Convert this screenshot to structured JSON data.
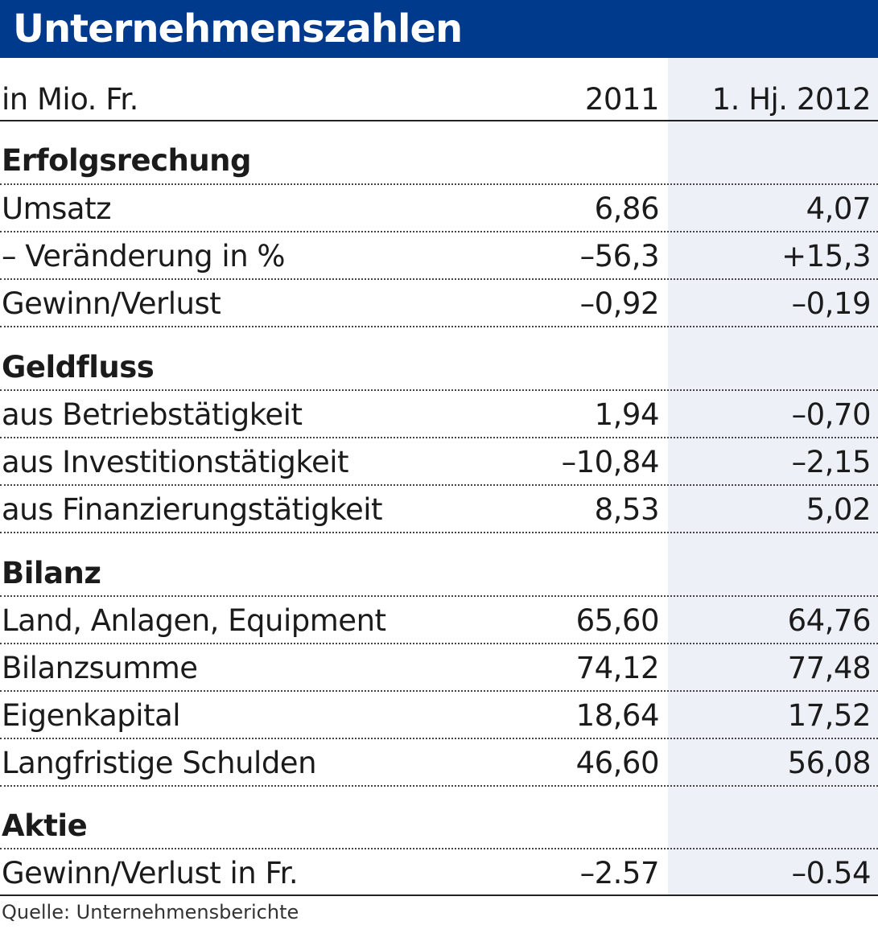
{
  "title": "Unternehmenszahlen",
  "colors": {
    "banner": "#003a8c",
    "column_shade": "#edf1f7",
    "text": "#1b1b1b"
  },
  "header": {
    "unit": "in Mio. Fr.",
    "col1": "2011",
    "col2": "1. Hj. 2012"
  },
  "sections": [
    {
      "name": "Erfolgsrechung",
      "rows": [
        {
          "label": "Umsatz",
          "v2011": "6,86",
          "h2012": "4,07"
        },
        {
          "label": "– Veränderung in %",
          "v2011": "–56,3",
          "h2012": "+15,3"
        },
        {
          "label": "Gewinn/Verlust",
          "v2011": "–0,92",
          "h2012": "–0,19"
        }
      ]
    },
    {
      "name": "Geldfluss",
      "rows": [
        {
          "label": "aus Betriebstätigkeit",
          "v2011": "1,94",
          "h2012": "–0,70"
        },
        {
          "label": "aus Investitionstätigkeit",
          "v2011": "–10,84",
          "h2012": "–2,15"
        },
        {
          "label": "aus Finanzierungstätigkeit",
          "v2011": "8,53",
          "h2012": "5,02"
        }
      ]
    },
    {
      "name": "Bilanz",
      "rows": [
        {
          "label": "Land, Anlagen, Equipment",
          "v2011": "65,60",
          "h2012": "64,76"
        },
        {
          "label": "Bilanzsumme",
          "v2011": "74,12",
          "h2012": "77,48"
        },
        {
          "label": "Eigenkapital",
          "v2011": "18,64",
          "h2012": "17,52"
        },
        {
          "label": "Langfristige Schulden",
          "v2011": "46,60",
          "h2012": "56,08"
        }
      ]
    },
    {
      "name": "Aktie",
      "rows": [
        {
          "label": "Gewinn/Verlust in Fr.",
          "v2011": "–2.57",
          "h2012": "–0.54"
        }
      ]
    }
  ],
  "source": "Quelle: Unternehmensberichte",
  "chart_data": {
    "type": "table",
    "title": "Unternehmenszahlen",
    "unit": "in Mio. Fr.",
    "columns": [
      "2011",
      "1. Hj. 2012"
    ],
    "rows": [
      {
        "section": "Erfolgsrechung",
        "label": "Umsatz",
        "values": [
          6.86,
          4.07
        ]
      },
      {
        "section": "Erfolgsrechung",
        "label": "– Veränderung in %",
        "values": [
          -56.3,
          15.3
        ]
      },
      {
        "section": "Erfolgsrechung",
        "label": "Gewinn/Verlust",
        "values": [
          -0.92,
          -0.19
        ]
      },
      {
        "section": "Geldfluss",
        "label": "aus Betriebstätigkeit",
        "values": [
          1.94,
          -0.7
        ]
      },
      {
        "section": "Geldfluss",
        "label": "aus Investitionstätigkeit",
        "values": [
          -10.84,
          -2.15
        ]
      },
      {
        "section": "Geldfluss",
        "label": "aus Finanzierungstätigkeit",
        "values": [
          8.53,
          5.02
        ]
      },
      {
        "section": "Bilanz",
        "label": "Land, Anlagen, Equipment",
        "values": [
          65.6,
          64.76
        ]
      },
      {
        "section": "Bilanz",
        "label": "Bilanzsumme",
        "values": [
          74.12,
          77.48
        ]
      },
      {
        "section": "Bilanz",
        "label": "Eigenkapital",
        "values": [
          18.64,
          17.52
        ]
      },
      {
        "section": "Bilanz",
        "label": "Langfristige Schulden",
        "values": [
          46.6,
          56.08
        ]
      },
      {
        "section": "Aktie",
        "label": "Gewinn/Verlust in Fr.",
        "values": [
          -2.57,
          -0.54
        ]
      }
    ]
  }
}
